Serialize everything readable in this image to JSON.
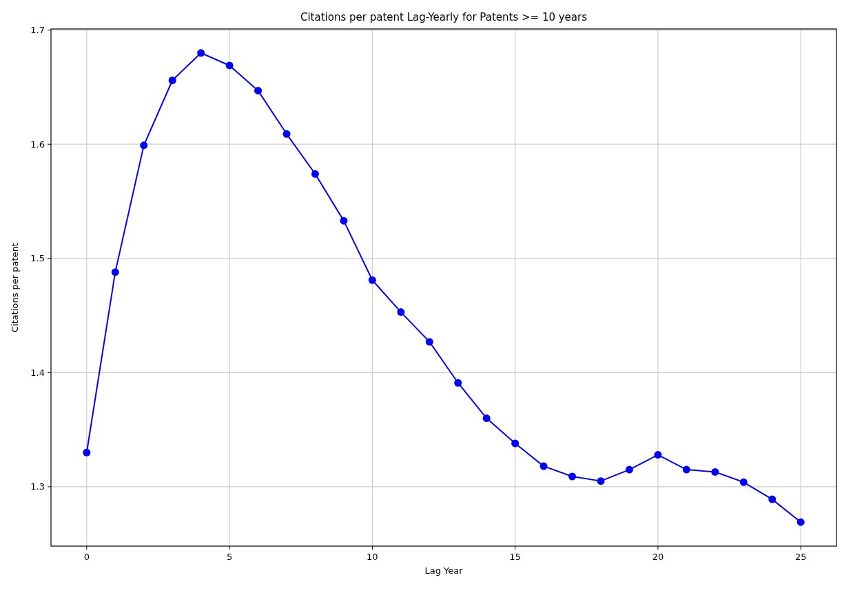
{
  "chart_data": {
    "type": "line",
    "title": "Citations per patent Lag-Yearly for Patents >= 10 years",
    "xlabel": "Lag Year",
    "ylabel": "Citations per patent",
    "x": [
      0,
      1,
      2,
      3,
      4,
      5,
      6,
      7,
      8,
      9,
      10,
      11,
      12,
      13,
      14,
      15,
      16,
      17,
      18,
      19,
      20,
      21,
      22,
      23,
      24,
      25
    ],
    "series": [
      {
        "color": "#0000ff",
        "values": [
          1.33,
          1.488,
          1.599,
          1.656,
          1.68,
          1.669,
          1.647,
          1.609,
          1.574,
          1.533,
          1.481,
          1.453,
          1.427,
          1.391,
          1.36,
          1.338,
          1.318,
          1.309,
          1.305,
          1.315,
          1.328,
          1.315,
          1.313,
          1.304,
          1.289,
          1.269
        ]
      }
    ],
    "xlim": [
      -1.25,
      26.25
    ],
    "ylim": [
      1.248,
      1.701
    ],
    "xticks": [
      0,
      5,
      10,
      15,
      20,
      25
    ],
    "yticks": [
      1.3,
      1.4,
      1.5,
      1.6,
      1.7
    ],
    "grid": true,
    "marker": "circle",
    "line_style": "solid"
  }
}
